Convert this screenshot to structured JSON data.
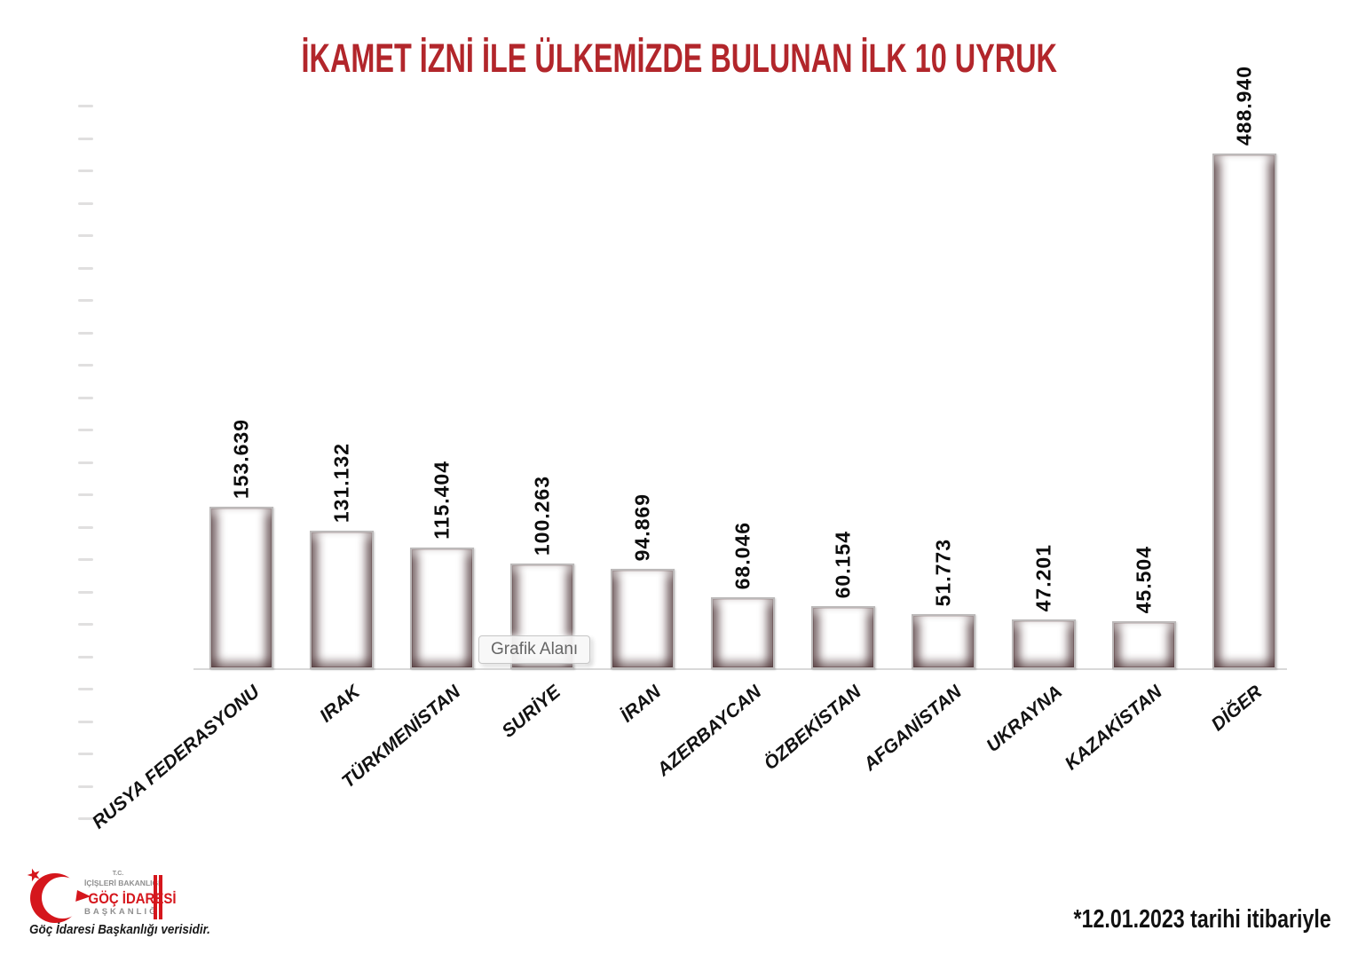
{
  "title": "İKAMET İZNİ İLE ÜLKEMİZDE BULUNAN İLK 10 UYRUK",
  "tooltip": {
    "label": "Grafik Alanı"
  },
  "chart_data": {
    "type": "bar",
    "title": "İKAMET İZNİ İLE ÜLKEMİZDE BULUNAN İLK 10 UYRUK",
    "categories": [
      "RUSYA FEDERASYONU",
      "IRAK",
      "TÜRKMENİSTAN",
      "SURİYE",
      "İRAN",
      "AZERBAYCAN",
      "ÖZBEKİSTAN",
      "AFGANİSTAN",
      "UKRAYNA",
      "KAZAKİSTAN",
      "DİĞER"
    ],
    "values": [
      153639,
      131132,
      115404,
      100263,
      94869,
      68046,
      60154,
      51773,
      47201,
      45504,
      488940
    ],
    "value_labels": [
      "153.639",
      "131.132",
      "115.404",
      "100.263",
      "94.869",
      "68.046",
      "60.154",
      "51.773",
      "47.201",
      "45.504",
      "488.940"
    ],
    "xlabel": "",
    "ylabel": "",
    "ylim": [
      0,
      550000
    ],
    "y_axis": {
      "tick_labels_visible": false,
      "tick_count": 23
    },
    "grid": false,
    "legend": "none",
    "bar_gradient_top": "#6a3136",
    "bar_gradient_bottom": "#eebcbc"
  },
  "footer": {
    "logo": {
      "line1": "T.C.",
      "line2": "İÇİŞLERİ BAKANLIĞI",
      "line3": "GÖÇ İDARESİ",
      "line4": "BAŞKANLIĞI",
      "caption": "Göç İdaresi Başkanlığı verisidir.",
      "brand_red": "#d5161c"
    },
    "date_note": "*12.01.2023 tarihi itibariyle"
  },
  "colors": {
    "title": "#b2262b",
    "axis_line": "#d9d9d9",
    "tick": "#dbd9d9",
    "label_text": "#0d0d0d"
  }
}
